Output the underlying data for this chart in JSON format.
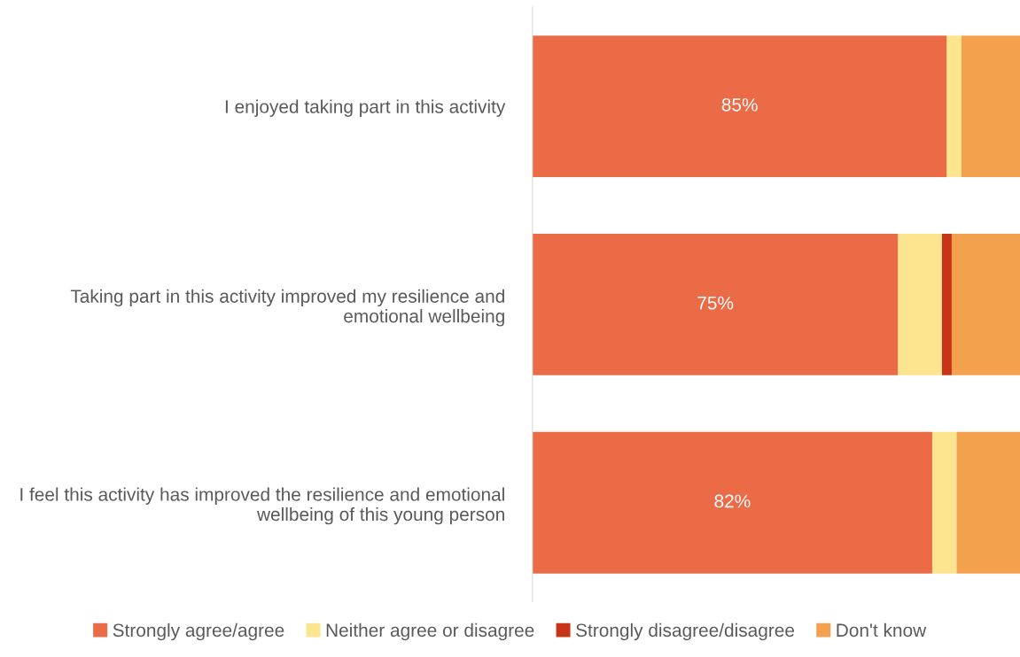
{
  "chart_data": {
    "type": "bar",
    "orientation": "horizontal",
    "stacked": true,
    "categories": [
      "I enjoyed taking part in this activity",
      "Taking part in this activity improved my resilience and emotional wellbeing",
      "I feel this activity has improved the resilience and emotional wellbeing of this young person"
    ],
    "series": [
      {
        "name": "Strongly agree/agree",
        "color": "#ec6b47",
        "values": [
          85,
          75,
          82
        ],
        "value_labels": [
          "85%",
          "75%",
          "82%"
        ]
      },
      {
        "name": "Neither agree or disagree",
        "color": "#fde48f",
        "values": [
          3,
          9,
          5
        ]
      },
      {
        "name": "Strongly disagree/disagree",
        "color": "#c83418",
        "values": [
          0,
          2,
          0
        ]
      },
      {
        "name": "Don't know",
        "color": "#f4a14e",
        "values": [
          12,
          14,
          13
        ]
      }
    ],
    "xlim": [
      0,
      100
    ],
    "tick_labels": "y",
    "legend": "bottom"
  }
}
